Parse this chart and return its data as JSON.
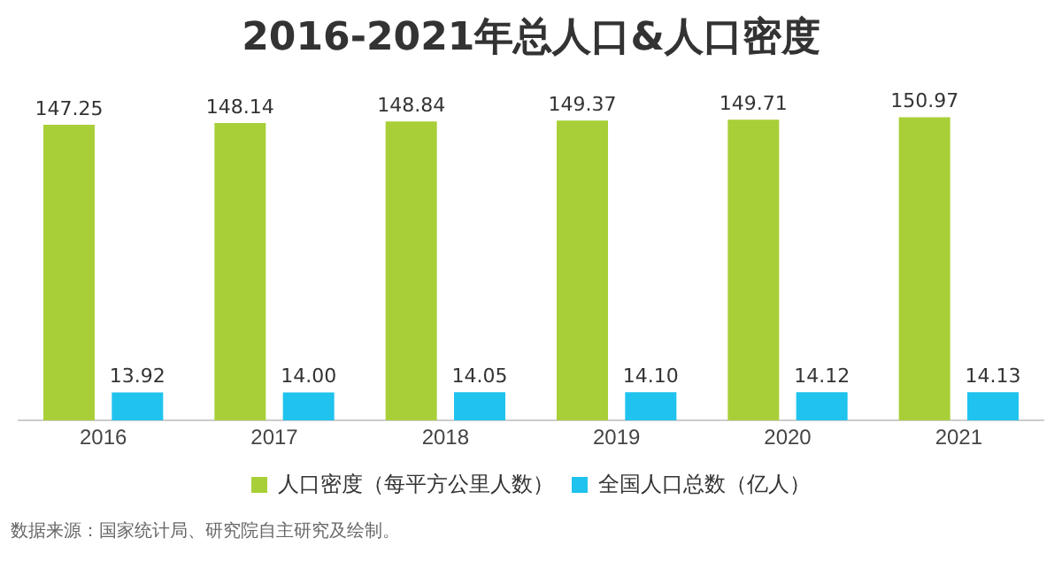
{
  "chart_data": {
    "type": "bar",
    "title": "2016-2021年总人口&人口密度",
    "categories": [
      "2016",
      "2017",
      "2018",
      "2019",
      "2020",
      "2021"
    ],
    "series": [
      {
        "name": "人口密度（每平方公里人数）",
        "color": "#a9cf38",
        "values": [
          147.25,
          148.14,
          148.84,
          149.37,
          149.71,
          150.97
        ],
        "value_labels": [
          "147.25",
          "148.14",
          "148.84",
          "149.37",
          "149.71",
          "150.97"
        ]
      },
      {
        "name": "全国人口总数（亿人）",
        "color": "#1fc3ee",
        "values": [
          13.92,
          14.0,
          14.05,
          14.1,
          14.12,
          14.13
        ],
        "value_labels": [
          "13.92",
          "14.00",
          "14.05",
          "14.10",
          "14.12",
          "14.13"
        ]
      }
    ],
    "tick_labels": "x",
    "grid": false,
    "legend": "bottom",
    "annotations": [
      "数据来源：国家统计局、研究院自主研究及绘制。"
    ]
  }
}
